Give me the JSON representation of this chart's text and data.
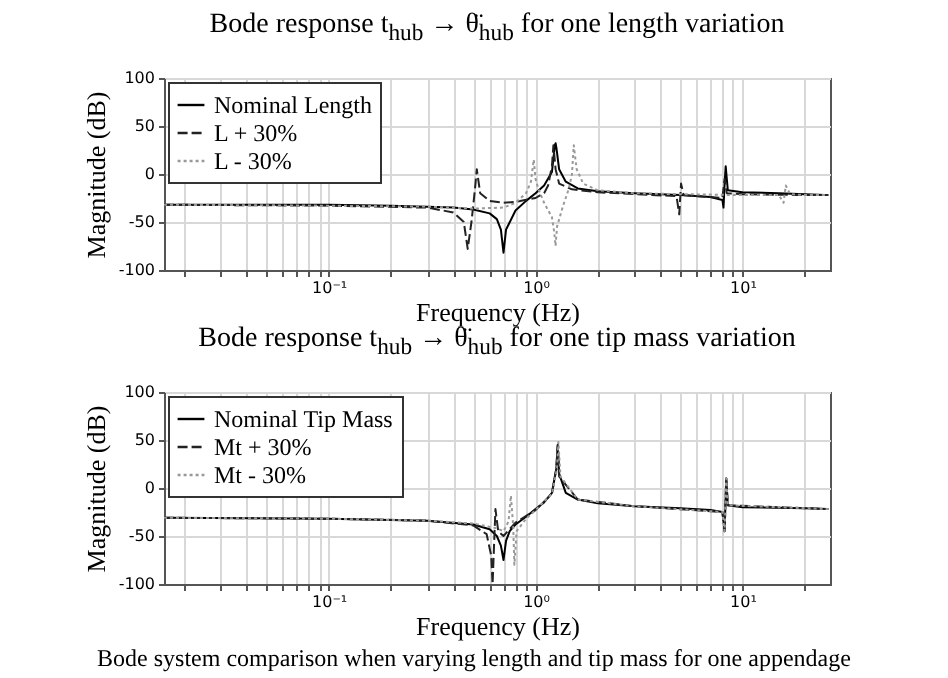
{
  "chart_data": [
    {
      "type": "line",
      "title": "Bode response t$_{hub}$ → θ̈$_{hub}$ for one length variation",
      "xlabel": "Frequency (Hz)",
      "ylabel": "Magnitude (dB)",
      "log": "x",
      "grid": true,
      "legend": "top left",
      "xlim": [
        0.016,
        26.5
      ],
      "ylim": [
        -100,
        100
      ],
      "xticks": [
        {
          "value": 0.02,
          "label": null
        },
        {
          "value": 0.03,
          "label": null
        },
        {
          "value": 0.04,
          "label": null
        },
        {
          "value": 0.05,
          "label": null
        },
        {
          "value": 0.06,
          "label": null
        },
        {
          "value": 0.07,
          "label": null
        },
        {
          "value": 0.08,
          "label": null
        },
        {
          "value": 0.09,
          "label": null
        },
        {
          "value": 0.1,
          "label": "10⁻¹"
        },
        {
          "value": 0.2,
          "label": null
        },
        {
          "value": 0.3,
          "label": null
        },
        {
          "value": 0.4,
          "label": null
        },
        {
          "value": 0.5,
          "label": null
        },
        {
          "value": 0.6,
          "label": null
        },
        {
          "value": 0.7,
          "label": null
        },
        {
          "value": 0.8,
          "label": null
        },
        {
          "value": 0.9,
          "label": null
        },
        {
          "value": 1,
          "label": "10⁰"
        },
        {
          "value": 2,
          "label": null
        },
        {
          "value": 3,
          "label": null
        },
        {
          "value": 4,
          "label": null
        },
        {
          "value": 5,
          "label": null
        },
        {
          "value": 6,
          "label": null
        },
        {
          "value": 7,
          "label": null
        },
        {
          "value": 8,
          "label": null
        },
        {
          "value": 9,
          "label": null
        },
        {
          "value": 10,
          "label": "10¹"
        },
        {
          "value": 20,
          "label": null
        }
      ],
      "yticks": [
        -100,
        -50,
        0,
        50,
        100
      ],
      "series": [
        {
          "name": "Nominal Length",
          "color": "#000000",
          "line_style": "solid",
          "x": [
            0.016,
            0.05,
            0.1,
            0.2,
            0.3,
            0.4,
            0.5,
            0.6,
            0.65,
            0.68,
            0.7,
            0.72,
            0.8,
            0.9,
            1.0,
            1.1,
            1.2,
            1.24,
            1.25,
            1.26,
            1.3,
            1.4,
            1.6,
            2,
            3,
            5,
            7,
            8,
            8.1,
            8.2,
            8.3,
            8.5,
            10,
            15,
            20,
            25,
            26
          ],
          "values": [
            -32,
            -32,
            -32,
            -33,
            -34,
            -35,
            -37,
            -41,
            -47,
            -58,
            -82,
            -58,
            -38,
            -28,
            -20,
            -12,
            2,
            30,
            32,
            28,
            5,
            -8,
            -15,
            -18,
            -20,
            -22,
            -24,
            -27,
            -35,
            -10,
            8,
            -17,
            -19,
            -20,
            -21,
            -22,
            -22
          ]
        },
        {
          "name": "L + 30%",
          "color": "#222222",
          "line_style": "dashed",
          "x": [
            0.016,
            0.1,
            0.3,
            0.4,
            0.45,
            0.47,
            0.49,
            0.51,
            0.52,
            0.54,
            0.6,
            0.7,
            0.8,
            1.0,
            1.1,
            1.15,
            1.2,
            1.22,
            1.25,
            1.3,
            1.5,
            2,
            3,
            4.8,
            4.95,
            5.05,
            5.2,
            8,
            8.2,
            8.4,
            10,
            20,
            26
          ],
          "values": [
            -32,
            -33,
            -35,
            -40,
            -50,
            -78,
            -50,
            -15,
            5,
            -20,
            -28,
            -30,
            -29,
            -25,
            -20,
            -12,
            8,
            30,
            5,
            -10,
            -16,
            -19,
            -21,
            -23,
            -42,
            -10,
            -22,
            -25,
            -5,
            -20,
            -21,
            -22,
            -22
          ]
        },
        {
          "name": "L - 30%",
          "color": "#999999",
          "line_style": "dotted",
          "x": [
            0.016,
            0.1,
            0.3,
            0.5,
            0.7,
            0.8,
            0.9,
            0.95,
            0.98,
            1.0,
            1.03,
            1.1,
            1.2,
            1.23,
            1.25,
            1.27,
            1.35,
            1.45,
            1.5,
            1.53,
            1.58,
            1.7,
            2,
            3,
            5,
            10,
            15,
            15.8,
            16.2,
            17,
            20,
            26
          ],
          "values": [
            -32,
            -33,
            -34,
            -36,
            -35,
            -30,
            -20,
            -8,
            15,
            -5,
            -15,
            -30,
            -45,
            -60,
            -75,
            -55,
            -35,
            -15,
            0,
            30,
            5,
            -10,
            -17,
            -20,
            -21,
            -22,
            -22,
            -30,
            -12,
            -21,
            -22,
            -22
          ]
        }
      ]
    },
    {
      "type": "line",
      "title": "Bode response t$_{hub}$ → θ̈$_{hub}$ for one tip mass variation",
      "xlabel": "Frequency (Hz)",
      "ylabel": "Magnitude (dB)",
      "log": "x",
      "grid": true,
      "legend": "top left",
      "xlim": [
        0.016,
        26.5
      ],
      "ylim": [
        -100,
        100
      ],
      "xticks": [
        {
          "value": 0.02,
          "label": null
        },
        {
          "value": 0.03,
          "label": null
        },
        {
          "value": 0.04,
          "label": null
        },
        {
          "value": 0.05,
          "label": null
        },
        {
          "value": 0.06,
          "label": null
        },
        {
          "value": 0.07,
          "label": null
        },
        {
          "value": 0.08,
          "label": null
        },
        {
          "value": 0.09,
          "label": null
        },
        {
          "value": 0.1,
          "label": "10⁻¹"
        },
        {
          "value": 0.2,
          "label": null
        },
        {
          "value": 0.3,
          "label": null
        },
        {
          "value": 0.4,
          "label": null
        },
        {
          "value": 0.5,
          "label": null
        },
        {
          "value": 0.6,
          "label": null
        },
        {
          "value": 0.7,
          "label": null
        },
        {
          "value": 0.8,
          "label": null
        },
        {
          "value": 0.9,
          "label": null
        },
        {
          "value": 1,
          "label": "10⁰"
        },
        {
          "value": 2,
          "label": null
        },
        {
          "value": 3,
          "label": null
        },
        {
          "value": 4,
          "label": null
        },
        {
          "value": 5,
          "label": null
        },
        {
          "value": 6,
          "label": null
        },
        {
          "value": 7,
          "label": null
        },
        {
          "value": 8,
          "label": null
        },
        {
          "value": 9,
          "label": null
        },
        {
          "value": 10,
          "label": "10¹"
        },
        {
          "value": 20,
          "label": null
        }
      ],
      "yticks": [
        -100,
        -50,
        0,
        50,
        100
      ],
      "annotations": [
        "Bode system comparison when varying length and tip mass for one appendage"
      ],
      "series": [
        {
          "name": "Nominal Tip Mass",
          "color": "#000000",
          "line_style": "solid",
          "x": [
            0.016,
            0.1,
            0.3,
            0.5,
            0.6,
            0.65,
            0.68,
            0.7,
            0.72,
            0.75,
            0.8,
            0.9,
            1.0,
            1.1,
            1.2,
            1.26,
            1.28,
            1.3,
            1.4,
            1.6,
            2,
            3,
            5,
            7,
            8,
            8.2,
            8.35,
            8.5,
            10,
            20,
            26
          ],
          "values": [
            -31,
            -32,
            -34,
            -38,
            -43,
            -50,
            -60,
            -75,
            -55,
            -45,
            -38,
            -30,
            -22,
            -15,
            -5,
            20,
            45,
            15,
            -5,
            -12,
            -16,
            -19,
            -21,
            -23,
            -25,
            -45,
            10,
            -18,
            -20,
            -21,
            -22
          ]
        },
        {
          "name": "Mt + 30%",
          "color": "#222222",
          "line_style": "dashed",
          "x": [
            0.016,
            0.1,
            0.3,
            0.5,
            0.58,
            0.61,
            0.62,
            0.63,
            0.64,
            0.66,
            0.7,
            0.8,
            1.0,
            1.2,
            1.26,
            1.28,
            1.3,
            1.6,
            3,
            8,
            8.2,
            8.35,
            8.5,
            20,
            26
          ],
          "values": [
            -31,
            -32,
            -34,
            -39,
            -48,
            -70,
            -100,
            -60,
            -22,
            -45,
            -50,
            -36,
            -23,
            -6,
            20,
            44,
            12,
            -12,
            -19,
            -25,
            -45,
            10,
            -18,
            -21,
            -22
          ]
        },
        {
          "name": "Mt - 30%",
          "color": "#999999",
          "line_style": "dotted",
          "x": [
            0.016,
            0.1,
            0.3,
            0.5,
            0.65,
            0.7,
            0.74,
            0.76,
            0.78,
            0.79,
            0.81,
            0.9,
            1.0,
            1.2,
            1.27,
            1.29,
            1.32,
            1.6,
            3,
            8,
            8.2,
            8.35,
            8.5,
            20,
            26
          ],
          "values": [
            -31,
            -32,
            -34,
            -37,
            -42,
            -45,
            -35,
            -8,
            -40,
            -80,
            -45,
            -32,
            -23,
            -6,
            20,
            48,
            12,
            -12,
            -19,
            -25,
            -45,
            10,
            -18,
            -21,
            -22
          ]
        }
      ]
    }
  ]
}
